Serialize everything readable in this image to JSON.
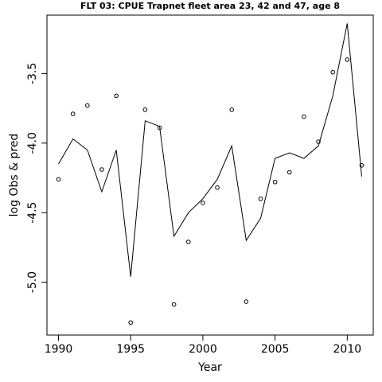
{
  "chart_data": {
    "type": "line",
    "title": "FLT 03: CPUE Trapnet fleet area 23, 42 and 47, age 8",
    "xlabel": "Year",
    "ylabel": "log Obs & pred",
    "xlim": [
      1989.2,
      2011.8
    ],
    "ylim": [
      -5.38,
      -3.08
    ],
    "x_ticks": [
      1990,
      1995,
      2000,
      2005,
      2010
    ],
    "x_tick_labels": [
      "1990",
      "1995",
      "2000",
      "2005",
      "2010"
    ],
    "y_ticks": [
      -3.5,
      -4.0,
      -4.5,
      -5.0
    ],
    "y_tick_labels": [
      "-3.5",
      "-4.0",
      "-4.5",
      "-5.0"
    ],
    "series": [
      {
        "style": "points",
        "x": [
          1990,
          1991,
          1992,
          1993,
          1994,
          1995,
          1996,
          1997,
          1998,
          1999,
          2000,
          2001,
          2002,
          2003,
          2004,
          2005,
          2006,
          2007,
          2008,
          2009,
          2010,
          2011
        ],
        "values": [
          -4.26,
          -3.79,
          -3.73,
          -4.19,
          -3.66,
          -5.29,
          -3.76,
          -3.89,
          -5.16,
          -4.71,
          -4.43,
          -4.32,
          -3.76,
          -5.14,
          -4.4,
          -4.28,
          -4.21,
          -3.81,
          -3.99,
          -3.49,
          -3.4,
          -4.16
        ]
      },
      {
        "style": "line",
        "x": [
          1990,
          1991,
          1992,
          1993,
          1994,
          1995,
          1996,
          1997,
          1998,
          1999,
          2000,
          2001,
          2002,
          2003,
          2004,
          2005,
          2006,
          2007,
          2008,
          2009,
          2010,
          2011
        ],
        "values": [
          -4.15,
          -3.97,
          -4.05,
          -4.35,
          -4.05,
          -4.96,
          -3.84,
          -3.88,
          -4.67,
          -4.5,
          -4.4,
          -4.26,
          -4.02,
          -4.7,
          -4.54,
          -4.11,
          -4.07,
          -4.11,
          -4.02,
          -3.66,
          -3.14,
          -4.24
        ]
      }
    ]
  }
}
